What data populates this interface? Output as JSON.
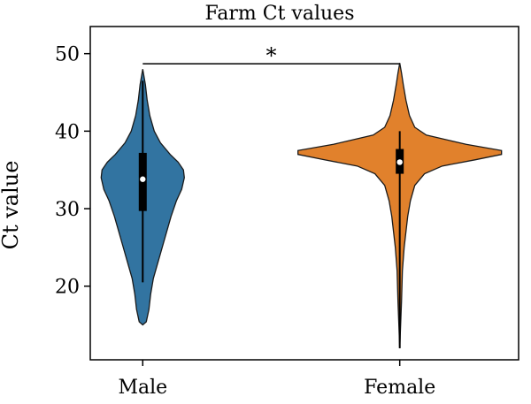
{
  "chart_data": {
    "type": "violin",
    "title": "Farm Ct values",
    "xlabel": "",
    "ylabel": "Ct value",
    "categories": [
      "Male",
      "Female"
    ],
    "ylim": [
      10.5,
      53.5
    ],
    "yticks": [
      20,
      30,
      40,
      50
    ],
    "grid": false,
    "series": [
      {
        "category": "Male",
        "color": "#3274a1",
        "min": 15.0,
        "q1": 29.7,
        "median": 33.8,
        "q3": 37.2,
        "max": 48.0,
        "whisker_low": 20.5,
        "whisker_high": 46.5
      },
      {
        "category": "Female",
        "color": "#e1812c",
        "min": 12.0,
        "q1": 34.5,
        "median": 36.0,
        "q3": 37.7,
        "max": 48.8,
        "whisker_low": 12.0,
        "whisker_high": 40.0
      }
    ],
    "annotations": [
      {
        "text": "*",
        "between": [
          "Male",
          "Female"
        ],
        "y": 48.7
      }
    ]
  }
}
